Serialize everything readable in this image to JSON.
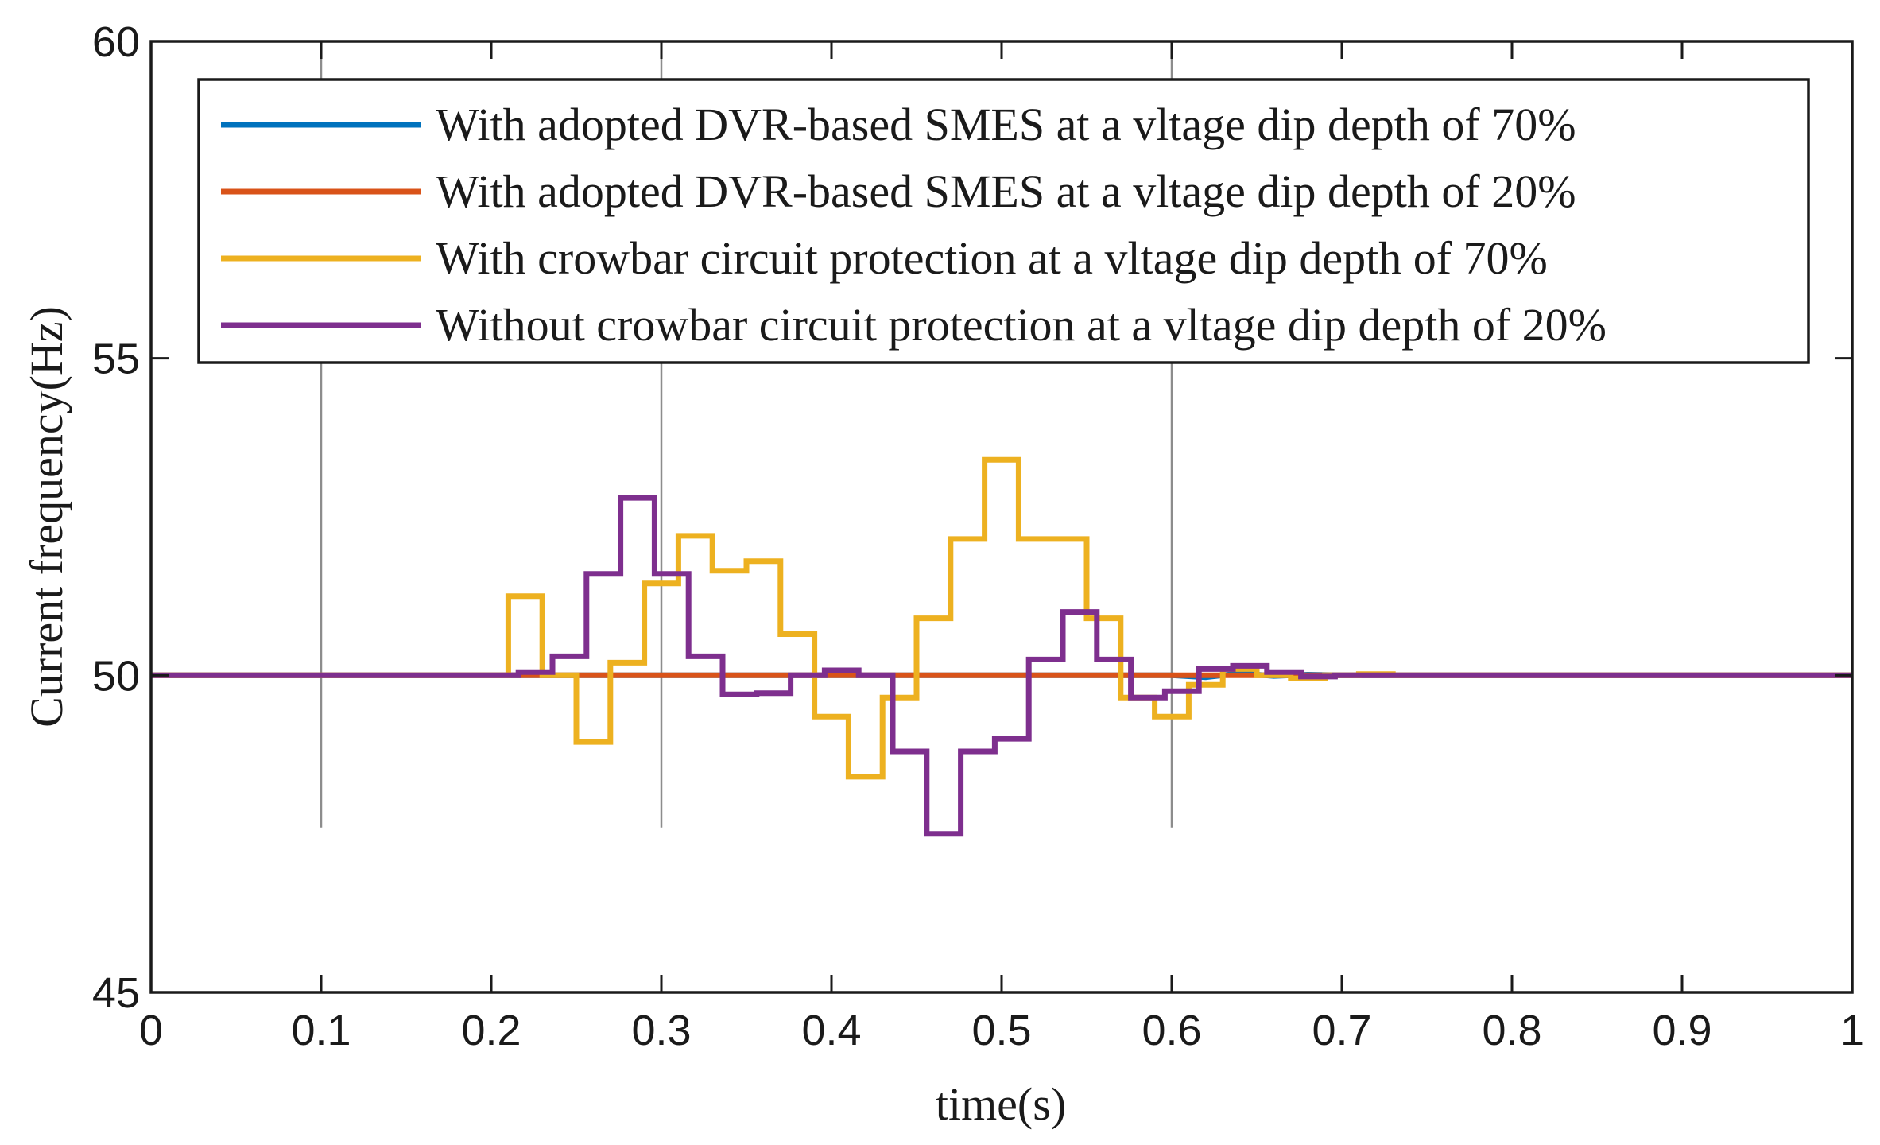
{
  "chart_data": {
    "type": "line",
    "title": "",
    "xlabel": "time(s)",
    "ylabel": "Current frequency(Hz)",
    "xlim": [
      0,
      1
    ],
    "ylim": [
      45,
      60
    ],
    "xticks": [
      0,
      0.1,
      0.2,
      0.3,
      0.4,
      0.5,
      0.6,
      0.7,
      0.8,
      0.9,
      1
    ],
    "xtick_labels": [
      "0",
      "0.1",
      "0.2",
      "0.3",
      "0.4",
      "0.5",
      "0.6",
      "0.7",
      "0.8",
      "0.9",
      "1"
    ],
    "yticks": [
      45,
      50,
      55,
      60
    ],
    "ytick_labels": [
      "45",
      "50",
      "55",
      "60"
    ],
    "grid": false,
    "legend_position": "top",
    "reference_lines": [
      {
        "x": 0.1,
        "y_from": 47.6,
        "y_to": 60,
        "color": "#8c8c8c"
      },
      {
        "x": 0.3,
        "y_from": 47.6,
        "y_to": 60,
        "color": "#8c8c8c"
      },
      {
        "x": 0.6,
        "y_from": 47.6,
        "y_to": 60,
        "color": "#8c8c8c"
      }
    ],
    "series": [
      {
        "name": "With adopted DVR-based SMES at a vltage dip depth of 70%",
        "color": "#0072BD",
        "x": [
          0,
          0.6,
          0.62,
          0.64,
          0.66,
          0.68,
          0.7,
          0.75,
          1.0
        ],
        "y": [
          50,
          50,
          49.97,
          50.03,
          49.99,
          50.01,
          50,
          50,
          50
        ]
      },
      {
        "name": "With adopted DVR-based SMES at a vltage dip depth of 20%",
        "color": "#D95319",
        "x": [
          0,
          1
        ],
        "y": [
          50,
          50
        ]
      },
      {
        "name": "With crowbar circuit protection at a vltage dip depth of 70%",
        "color": "#EDB120",
        "x": [
          0,
          0.21,
          0.21,
          0.23,
          0.23,
          0.25,
          0.25,
          0.27,
          0.27,
          0.29,
          0.29,
          0.31,
          0.31,
          0.33,
          0.33,
          0.35,
          0.35,
          0.37,
          0.37,
          0.39,
          0.39,
          0.41,
          0.41,
          0.43,
          0.43,
          0.45,
          0.45,
          0.47,
          0.47,
          0.49,
          0.49,
          0.51,
          0.51,
          0.53,
          0.53,
          0.55,
          0.55,
          0.57,
          0.57,
          0.59,
          0.59,
          0.61,
          0.61,
          0.63,
          0.63,
          0.65,
          0.65,
          0.67,
          0.67,
          0.69,
          0.69,
          0.71,
          0.71,
          0.73,
          0.73,
          0.77,
          0.77,
          1.0
        ],
        "y": [
          50,
          50,
          51.25,
          51.25,
          50.0,
          50.0,
          48.95,
          48.95,
          50.2,
          50.2,
          51.45,
          51.45,
          52.2,
          52.2,
          51.65,
          51.65,
          51.8,
          51.8,
          50.65,
          50.65,
          49.35,
          49.35,
          48.4,
          48.4,
          49.65,
          49.65,
          50.9,
          50.9,
          52.15,
          52.15,
          53.4,
          53.4,
          52.15,
          52.15,
          52.15,
          52.15,
          50.9,
          50.9,
          49.65,
          49.65,
          49.35,
          49.35,
          49.85,
          49.85,
          50.1,
          50.1,
          50.0,
          50.0,
          49.95,
          49.95,
          50.0,
          50.0,
          50.02,
          50.02,
          50.0,
          50.0,
          50.0,
          50.0
        ]
      },
      {
        "name": "Without crowbar circuit protection at a vltage dip depth of 20%",
        "color": "#7E2F8E",
        "x": [
          0,
          0.216,
          0.216,
          0.236,
          0.236,
          0.256,
          0.256,
          0.276,
          0.276,
          0.296,
          0.296,
          0.316,
          0.316,
          0.336,
          0.336,
          0.356,
          0.356,
          0.376,
          0.376,
          0.396,
          0.396,
          0.416,
          0.416,
          0.436,
          0.436,
          0.456,
          0.456,
          0.476,
          0.476,
          0.496,
          0.496,
          0.516,
          0.516,
          0.536,
          0.536,
          0.556,
          0.556,
          0.576,
          0.576,
          0.596,
          0.596,
          0.616,
          0.616,
          0.636,
          0.636,
          0.656,
          0.656,
          0.676,
          0.676,
          0.696,
          0.696,
          1.0
        ],
        "y": [
          50,
          50,
          50.05,
          50.05,
          50.3,
          50.3,
          51.6,
          51.6,
          52.8,
          52.8,
          51.6,
          51.6,
          50.3,
          50.3,
          49.7,
          49.7,
          49.72,
          49.72,
          50.0,
          50.0,
          50.08,
          50.08,
          50.0,
          50.0,
          48.8,
          48.8,
          47.5,
          47.5,
          48.8,
          48.8,
          49.0,
          49.0,
          50.25,
          50.25,
          51.0,
          51.0,
          50.25,
          50.25,
          49.65,
          49.65,
          49.75,
          49.75,
          50.1,
          50.1,
          50.15,
          50.15,
          50.05,
          50.05,
          49.98,
          49.98,
          50.0,
          50.0
        ]
      }
    ]
  }
}
